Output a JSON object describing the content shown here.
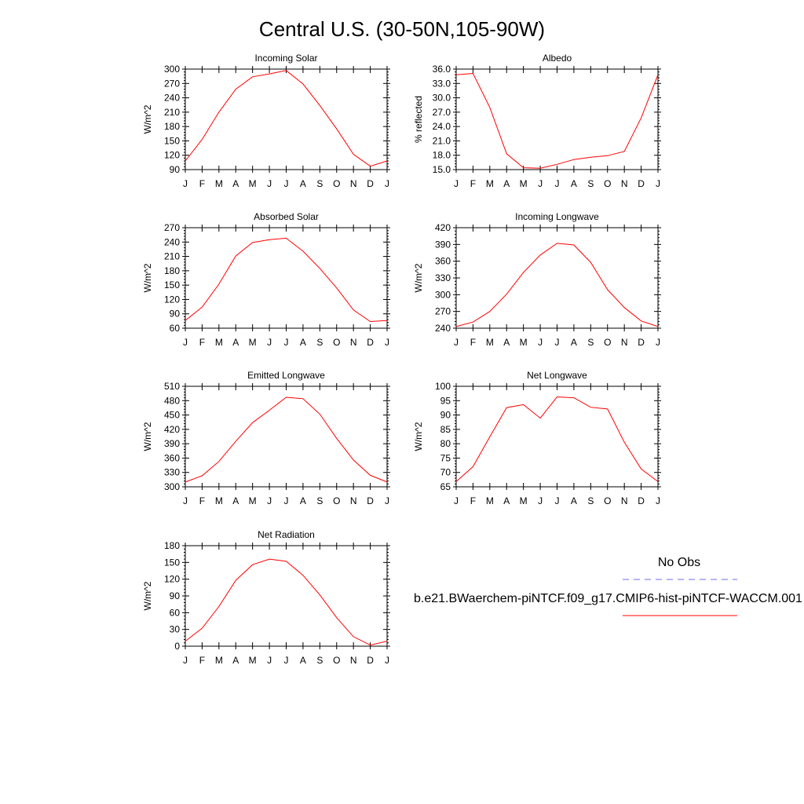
{
  "page": {
    "title": "Central U.S. (30-50N,105-90W)"
  },
  "months": [
    "J",
    "F",
    "M",
    "A",
    "M",
    "J",
    "J",
    "A",
    "S",
    "O",
    "N",
    "D",
    "J"
  ],
  "legend": {
    "obs_label": "No Obs",
    "obs_color": "#6b6bf0",
    "model_label": "b.e21.BWaerchem-piNTCF.f09_g17.CMIP6-hist-piNTCF-WACCM.001",
    "model_color": "#ff0000"
  },
  "chart_data": [
    {
      "type": "line",
      "title": "Incoming Solar",
      "ylabel": "W/m^2",
      "ylim": [
        90,
        300
      ],
      "yticks": [
        90,
        120,
        150,
        180,
        210,
        240,
        270,
        300
      ],
      "ytick_labels": [
        "90",
        "120",
        "150",
        "180",
        "210",
        "240",
        "270",
        "300"
      ],
      "x": [
        "J",
        "F",
        "M",
        "A",
        "M",
        "J",
        "J",
        "A",
        "S",
        "O",
        "N",
        "D",
        "J"
      ],
      "series": [
        {
          "values": [
            108,
            153,
            210,
            258,
            284,
            290,
            297,
            269,
            224,
            175,
            122,
            97,
            108
          ],
          "color": "#ff0000"
        }
      ]
    },
    {
      "type": "line",
      "title": "Albedo",
      "ylabel": "% reflected",
      "ylim": [
        15.0,
        36.0
      ],
      "yticks": [
        15.0,
        18.0,
        21.0,
        24.0,
        27.0,
        30.0,
        33.0,
        36.0
      ],
      "ytick_labels": [
        "15.0",
        "18.0",
        "21.0",
        "24.0",
        "27.0",
        "30.0",
        "33.0",
        "36.0"
      ],
      "x": [
        "J",
        "F",
        "M",
        "A",
        "M",
        "J",
        "J",
        "A",
        "S",
        "O",
        "N",
        "D",
        "J"
      ],
      "series": [
        {
          "values": [
            34.8,
            35.1,
            28.0,
            18.3,
            15.4,
            15.3,
            16.1,
            17.1,
            17.6,
            17.9,
            18.8,
            25.8,
            34.8
          ],
          "color": "#ff0000"
        }
      ]
    },
    {
      "type": "line",
      "title": "Absorbed Solar",
      "ylabel": "W/m^2",
      "ylim": [
        60,
        270
      ],
      "yticks": [
        60,
        90,
        120,
        150,
        180,
        210,
        240,
        270
      ],
      "ytick_labels": [
        "60",
        "90",
        "120",
        "150",
        "180",
        "210",
        "240",
        "270"
      ],
      "x": [
        "J",
        "F",
        "M",
        "A",
        "M",
        "J",
        "J",
        "A",
        "S",
        "O",
        "N",
        "D",
        "J"
      ],
      "series": [
        {
          "values": [
            76,
            104,
            152,
            211,
            239,
            245,
            248,
            221,
            185,
            144,
            98,
            74,
            76
          ],
          "color": "#ff0000"
        }
      ]
    },
    {
      "type": "line",
      "title": "Incoming Longwave",
      "ylabel": "W/m^2",
      "ylim": [
        240,
        420
      ],
      "yticks": [
        240,
        270,
        300,
        330,
        360,
        390,
        420
      ],
      "ytick_labels": [
        "240",
        "270",
        "300",
        "330",
        "360",
        "390",
        "420"
      ],
      "x": [
        "J",
        "F",
        "M",
        "A",
        "M",
        "J",
        "J",
        "A",
        "S",
        "O",
        "N",
        "D",
        "J"
      ],
      "series": [
        {
          "values": [
            243,
            251,
            270,
            301,
            340,
            371,
            392,
            389,
            358,
            309,
            277,
            253,
            243
          ],
          "color": "#ff0000"
        }
      ]
    },
    {
      "type": "line",
      "title": "Emitted Longwave",
      "ylabel": "W/m^2",
      "ylim": [
        300,
        510
      ],
      "yticks": [
        300,
        330,
        360,
        390,
        420,
        450,
        480,
        510
      ],
      "ytick_labels": [
        "300",
        "330",
        "360",
        "390",
        "420",
        "450",
        "480",
        "510"
      ],
      "x": [
        "J",
        "F",
        "M",
        "A",
        "M",
        "J",
        "J",
        "A",
        "S",
        "O",
        "N",
        "D",
        "J"
      ],
      "series": [
        {
          "values": [
            310,
            323,
            353,
            395,
            434,
            460,
            487,
            484,
            452,
            401,
            356,
            324,
            310
          ],
          "color": "#ff0000"
        }
      ]
    },
    {
      "type": "line",
      "title": "Net Longwave",
      "ylabel": "W/m^2",
      "ylim": [
        65,
        100
      ],
      "yticks": [
        65,
        70,
        75,
        80,
        85,
        90,
        95,
        100
      ],
      "ytick_labels": [
        "65",
        "70",
        "75",
        "80",
        "85",
        "90",
        "95",
        "100"
      ],
      "x": [
        "J",
        "F",
        "M",
        "A",
        "M",
        "J",
        "J",
        "A",
        "S",
        "O",
        "N",
        "D",
        "J"
      ],
      "series": [
        {
          "values": [
            66.8,
            72.0,
            82.4,
            92.6,
            93.6,
            88.9,
            96.3,
            96.0,
            92.7,
            92.1,
            80.5,
            71.2,
            66.8
          ],
          "color": "#ff0000"
        }
      ]
    },
    {
      "type": "line",
      "title": "Net Radiation",
      "ylabel": "W/m^2",
      "ylim": [
        0,
        180
      ],
      "yticks": [
        0,
        30,
        60,
        90,
        120,
        150,
        180
      ],
      "ytick_labels": [
        "0",
        "30",
        "60",
        "90",
        "120",
        "150",
        "180"
      ],
      "x": [
        "J",
        "F",
        "M",
        "A",
        "M",
        "J",
        "J",
        "A",
        "S",
        "O",
        "N",
        "D",
        "J"
      ],
      "series": [
        {
          "values": [
            9,
            32,
            71,
            118,
            146,
            156,
            152,
            127,
            92,
            51,
            17,
            2,
            9
          ],
          "color": "#ff0000"
        }
      ]
    }
  ]
}
